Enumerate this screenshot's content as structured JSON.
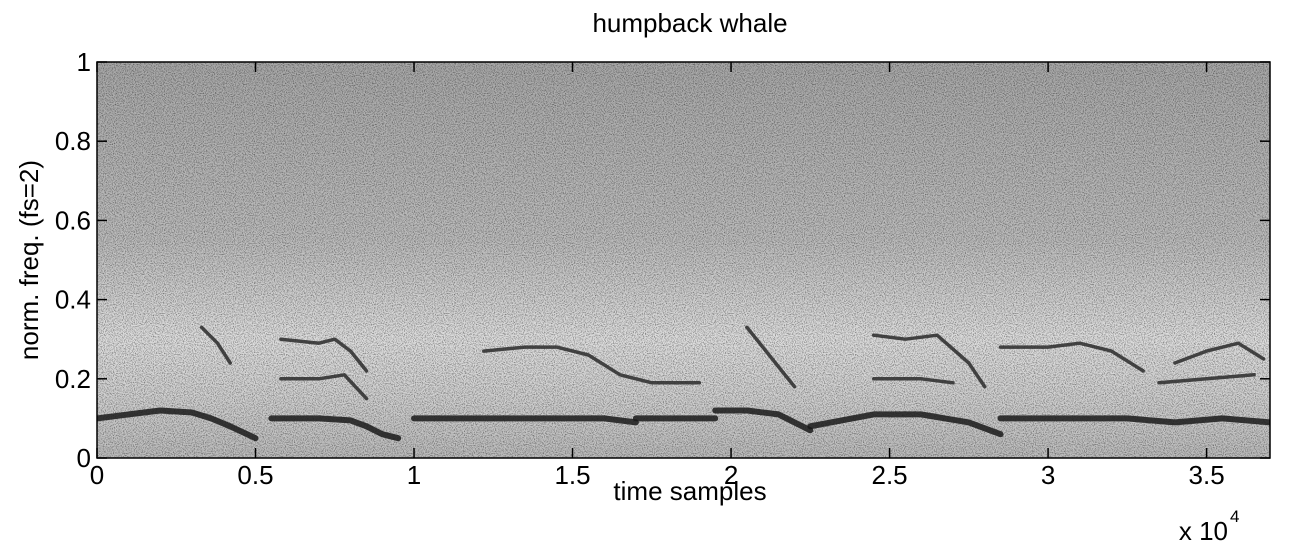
{
  "chart_data": {
    "type": "spectrogram",
    "title": "humpback whale",
    "x_label": "time samples",
    "y_label": "norm. freq. (fs=2)",
    "x_scale_label": "x 10",
    "x_scale_exponent": "4",
    "xlim": [
      0,
      3.7
    ],
    "ylim": [
      0,
      1
    ],
    "xticks": [
      0,
      0.5,
      1,
      1.5,
      2,
      2.5,
      3,
      3.5
    ],
    "yticks": [
      0,
      0.2,
      0.4,
      0.6,
      0.8,
      1
    ],
    "series": [
      {
        "color": "#1a1a1a",
        "x": [
          0,
          0.1,
          0.2,
          0.3,
          0.36,
          0.42,
          0.5
        ],
        "values": [
          0.1,
          0.11,
          0.12,
          0.115,
          0.1,
          0.08,
          0.05
        ]
      },
      {
        "color": "#1a1a1a",
        "x": [
          0.55,
          0.7,
          0.8,
          0.85,
          0.9,
          0.95
        ],
        "values": [
          0.1,
          0.1,
          0.095,
          0.08,
          0.06,
          0.05
        ]
      },
      {
        "color": "#1a1a1a",
        "x": [
          1.0,
          1.3,
          1.6,
          1.7
        ],
        "values": [
          0.1,
          0.1,
          0.1,
          0.09
        ]
      },
      {
        "color": "#1a1a1a",
        "x": [
          1.7,
          1.95
        ],
        "values": [
          0.1,
          0.1
        ]
      },
      {
        "color": "#1a1a1a",
        "x": [
          1.95,
          2.05,
          2.15,
          2.25
        ],
        "values": [
          0.12,
          0.12,
          0.11,
          0.07
        ]
      },
      {
        "color": "#1a1a1a",
        "x": [
          2.25,
          2.45,
          2.6,
          2.75,
          2.85
        ],
        "values": [
          0.08,
          0.11,
          0.11,
          0.09,
          0.06
        ]
      },
      {
        "color": "#1a1a1a",
        "x": [
          2.85,
          3.1,
          3.25,
          3.4,
          3.55,
          3.7
        ],
        "values": [
          0.1,
          0.1,
          0.1,
          0.09,
          0.1,
          0.09
        ]
      },
      {
        "color": "#2a2a2a",
        "x": [
          0.58,
          0.7,
          0.75,
          0.8,
          0.85
        ],
        "values": [
          0.3,
          0.29,
          0.3,
          0.27,
          0.22
        ]
      },
      {
        "color": "#2a2a2a",
        "x": [
          0.58,
          0.7,
          0.78,
          0.85
        ],
        "values": [
          0.2,
          0.2,
          0.21,
          0.15
        ]
      },
      {
        "color": "#2a2a2a",
        "x": [
          0.33,
          0.38,
          0.42
        ],
        "values": [
          0.33,
          0.29,
          0.24
        ]
      },
      {
        "color": "#2a2a2a",
        "x": [
          1.22,
          1.35,
          1.45,
          1.55,
          1.65,
          1.75,
          1.9
        ],
        "values": [
          0.27,
          0.28,
          0.28,
          0.26,
          0.21,
          0.19,
          0.19
        ]
      },
      {
        "color": "#2a2a2a",
        "x": [
          2.05,
          2.1,
          2.15,
          2.2
        ],
        "values": [
          0.33,
          0.28,
          0.23,
          0.18
        ]
      },
      {
        "color": "#2a2a2a",
        "x": [
          2.45,
          2.55,
          2.65,
          2.75,
          2.8
        ],
        "values": [
          0.31,
          0.3,
          0.31,
          0.24,
          0.18
        ]
      },
      {
        "color": "#2a2a2a",
        "x": [
          2.45,
          2.6,
          2.7
        ],
        "values": [
          0.2,
          0.2,
          0.19
        ]
      },
      {
        "color": "#2a2a2a",
        "x": [
          2.85,
          3.0,
          3.1,
          3.2,
          3.3
        ],
        "values": [
          0.28,
          0.28,
          0.29,
          0.27,
          0.22
        ]
      },
      {
        "color": "#2a2a2a",
        "x": [
          3.4,
          3.5,
          3.6,
          3.68
        ],
        "values": [
          0.24,
          0.27,
          0.29,
          0.25
        ]
      },
      {
        "color": "#2a2a2a",
        "x": [
          3.35,
          3.5,
          3.65
        ],
        "values": [
          0.19,
          0.2,
          0.21
        ]
      }
    ]
  }
}
